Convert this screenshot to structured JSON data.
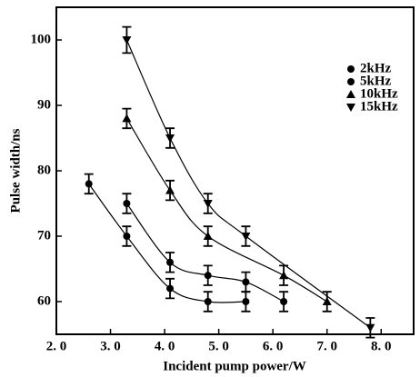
{
  "chart_data": {
    "type": "scatter",
    "xlabel": "Incident pump power/W",
    "ylabel": "Pulse width/ns",
    "xlim": [
      2.0,
      8.6
    ],
    "ylim": [
      55,
      105
    ],
    "xticks": [
      {
        "value": 2,
        "label": "2. 0"
      },
      {
        "value": 3,
        "label": "3. 0"
      },
      {
        "value": 4,
        "label": "4. 0"
      },
      {
        "value": 5,
        "label": "5. 0"
      },
      {
        "value": 6,
        "label": "6. 0"
      },
      {
        "value": 7,
        "label": "7. 0"
      },
      {
        "value": 8,
        "label": "8. 0"
      }
    ],
    "yticks": [
      60,
      70,
      80,
      90,
      100
    ],
    "legend": "upper right",
    "series": [
      {
        "name": "2kHz",
        "color": "#000000",
        "marker": "circle",
        "x": [
          2.6,
          3.3,
          4.1,
          4.8,
          5.5
        ],
        "values": [
          78,
          70,
          62,
          60,
          60
        ],
        "errors": [
          1.5,
          1.5,
          1.5,
          1.5,
          1.5
        ]
      },
      {
        "name": "5kHz",
        "color": "#000000",
        "marker": "circle",
        "x": [
          3.3,
          4.1,
          4.8,
          5.5,
          6.2
        ],
        "values": [
          75,
          66,
          64,
          63,
          60
        ],
        "errors": [
          1.5,
          1.5,
          1.5,
          1.5,
          1.5
        ]
      },
      {
        "name": "10kHz",
        "color": "#000000",
        "marker": "triangle-up",
        "x": [
          3.3,
          4.1,
          4.8,
          6.2,
          7.0
        ],
        "values": [
          88,
          77,
          70,
          64,
          60
        ],
        "errors": [
          1.5,
          1.5,
          1.5,
          1.5,
          1.5
        ]
      },
      {
        "name": "15kHz",
        "color": "#000000",
        "marker": "triangle-down",
        "x": [
          3.3,
          4.1,
          4.8,
          5.5,
          7.8
        ],
        "values": [
          100,
          85,
          75,
          70,
          56
        ],
        "errors": [
          2,
          1.5,
          1.5,
          1.5,
          1.5
        ]
      }
    ]
  }
}
